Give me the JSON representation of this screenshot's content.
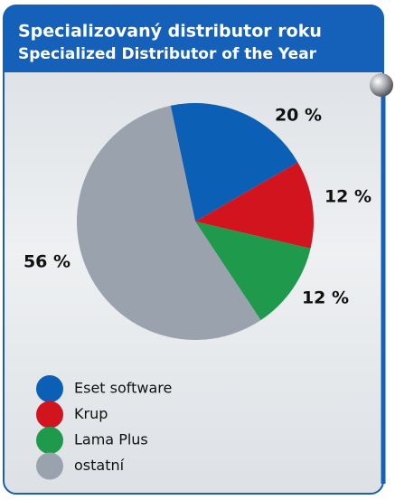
{
  "chart_data": {
    "type": "pie",
    "title": "Specializovaný distributor roku",
    "subtitle": "Specialized Distributor of the Year",
    "categories": [
      "Eset software",
      "Krup",
      "Lama Plus",
      "ostatní"
    ],
    "values": [
      20,
      12,
      12,
      56
    ],
    "value_labels": [
      "20 %",
      "12 %",
      "12 %",
      "56 %"
    ],
    "colors": [
      "#0b5fb4",
      "#d2141e",
      "#1f9a4c",
      "#9aa3ad"
    ]
  }
}
